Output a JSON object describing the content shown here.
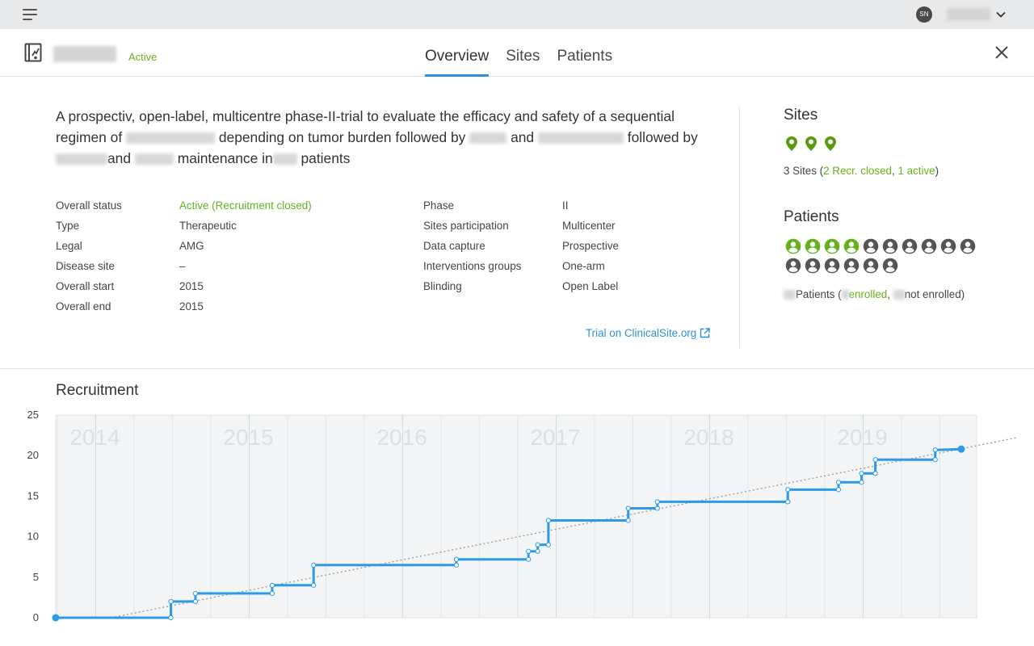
{
  "topbar": {
    "user_initials": "SN"
  },
  "header": {
    "status": "Active",
    "tabs": [
      {
        "label": "Overview",
        "active": true
      },
      {
        "label": "Sites",
        "active": false
      },
      {
        "label": "Patients",
        "active": false
      }
    ]
  },
  "description": {
    "part1": "A prospectiv, open-label, multicentre phase-II-trial to evaluate the efficacy and safety of a sequential regimen of",
    "part2": "depending on tumor burden followed by",
    "part3": "and",
    "part4": "followed by",
    "part5": "and",
    "part6": "maintenance in",
    "part7": "patients"
  },
  "info_left": [
    {
      "label": "Overall status",
      "value": "Active (Recruitment closed)",
      "highlight": true
    },
    {
      "label": "Type",
      "value": "Therapeutic"
    },
    {
      "label": "Legal",
      "value": "AMG"
    },
    {
      "label": "Disease site",
      "value": "–"
    },
    {
      "label": "Overall start",
      "value": "2015"
    },
    {
      "label": "Overall end",
      "value": "2015"
    }
  ],
  "info_right": [
    {
      "label": "Phase",
      "value": "II"
    },
    {
      "label": "Sites participation",
      "value": "Multicenter"
    },
    {
      "label": "Data capture",
      "value": "Prospective"
    },
    {
      "label": "Interventions groups",
      "value": "One-arm"
    },
    {
      "label": "Blinding",
      "value": "Open Label"
    }
  ],
  "trial_link": "Trial on ClinicalSite.org",
  "sites": {
    "title": "Sites",
    "pin_count": 3,
    "summary_prefix": "3 Sites (",
    "closed_text": "2 Recr. closed",
    "sep": ", ",
    "active_text": "1 active",
    "summary_suffix": ")"
  },
  "patients": {
    "title": "Patients",
    "enrolled_count": 4,
    "not_enrolled_count": 12,
    "summary_patients": "Patients (",
    "summary_enrolled": "enrolled",
    "summary_sep": ", ",
    "summary_not_enrolled": "not enrolled)"
  },
  "recruitment": {
    "title": "Recruitment"
  },
  "colors": {
    "green": "#66b21d",
    "blue": "#2f8fd8",
    "line": "#2b9be8",
    "dark_icon": "#555555"
  },
  "chart_data": {
    "type": "line",
    "title": "Recruitment",
    "year_labels": [
      "2014",
      "2015",
      "2016",
      "2017",
      "2018",
      "2019"
    ],
    "year_boundaries": [
      2014.0,
      2015.0,
      2016.0,
      2017.0,
      2018.0,
      2019.0
    ],
    "y_ticks": [
      0,
      5,
      10,
      15,
      20,
      25
    ],
    "ylim": [
      0,
      25
    ],
    "xlim": [
      2013.74,
      2019.74
    ],
    "grid": true,
    "series": [
      {
        "points": [
          [
            2013.74,
            0
          ],
          [
            2014.49,
            0
          ],
          [
            2014.49,
            2
          ],
          [
            2014.65,
            2
          ],
          [
            2014.65,
            3
          ],
          [
            2015.15,
            3
          ],
          [
            2015.15,
            4
          ],
          [
            2015.42,
            4
          ],
          [
            2015.42,
            6.5
          ],
          [
            2016.35,
            6.5
          ],
          [
            2016.35,
            7.2
          ],
          [
            2016.82,
            7.2
          ],
          [
            2016.82,
            8.2
          ],
          [
            2016.88,
            8.2
          ],
          [
            2016.88,
            9
          ],
          [
            2016.95,
            9
          ],
          [
            2016.95,
            12
          ],
          [
            2017.47,
            12
          ],
          [
            2017.47,
            13.5
          ],
          [
            2017.66,
            13.5
          ],
          [
            2017.66,
            14.3
          ],
          [
            2018.51,
            14.3
          ],
          [
            2018.51,
            15.8
          ],
          [
            2018.84,
            15.8
          ],
          [
            2018.84,
            16.7
          ],
          [
            2018.99,
            16.7
          ],
          [
            2018.99,
            17.8
          ],
          [
            2019.08,
            17.8
          ],
          [
            2019.08,
            19.5
          ],
          [
            2019.47,
            19.5
          ],
          [
            2019.47,
            20.7
          ],
          [
            2019.64,
            20.8
          ]
        ]
      }
    ],
    "trend": [
      [
        2014.1,
        0
      ],
      [
        2020.0,
        22.2
      ]
    ]
  }
}
